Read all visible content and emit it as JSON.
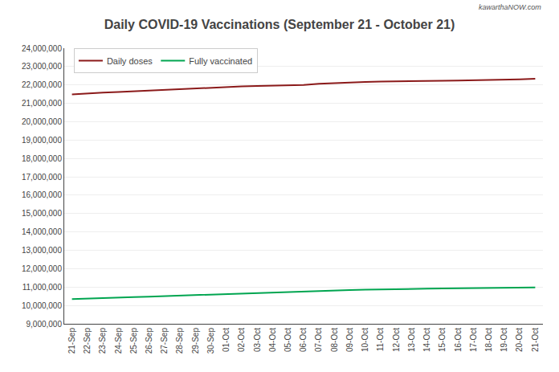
{
  "chart_data": {
    "type": "line",
    "title": "Daily COVID-19 Vaccinations (September 21 - October 21)",
    "annotations": [
      "kawarthaNOW.com"
    ],
    "categories": [
      "21-Sep",
      "22-Sep",
      "23-Sep",
      "24-Sep",
      "25-Sep",
      "26-Sep",
      "27-Sep",
      "28-Sep",
      "29-Sep",
      "30-Sep",
      "01-Oct",
      "02-Oct",
      "03-Oct",
      "04-Oct",
      "05-Oct",
      "06-Oct",
      "07-Oct",
      "08-Oct",
      "09-Oct",
      "10-Oct",
      "11-Oct",
      "12-Oct",
      "13-Oct",
      "14-Oct",
      "15-Oct",
      "16-Oct",
      "17-Oct",
      "18-Oct",
      "19-Oct",
      "20-Oct",
      "21-Oct"
    ],
    "series": [
      {
        "name": "Daily doses",
        "color": "#8B1A1A",
        "values": [
          21480000,
          21540000,
          21580000,
          21620000,
          21660000,
          21700000,
          21740000,
          21780000,
          21820000,
          21860000,
          21890000,
          21920000,
          21940000,
          21960000,
          21980000,
          22000000,
          22060000,
          22100000,
          22130000,
          22160000,
          22180000,
          22200000,
          22210000,
          22220000,
          22230000,
          22240000,
          22250000,
          22270000,
          22290000,
          22310000,
          22340000
        ]
      },
      {
        "name": "Fully vaccinated",
        "color": "#00A550",
        "values": [
          10340000,
          10360000,
          10390000,
          10420000,
          10450000,
          10480000,
          10510000,
          10540000,
          10570000,
          10600000,
          10630000,
          10660000,
          10680000,
          10710000,
          10730000,
          10760000,
          10790000,
          10820000,
          10840000,
          10860000,
          10880000,
          10890000,
          10900000,
          10910000,
          10920000,
          10930000,
          10940000,
          10950000,
          10960000,
          10970000,
          10980000
        ]
      }
    ],
    "ylim": [
      9000000,
      24000000
    ],
    "yticks": [
      {
        "value": 9000000,
        "label": "9,000,000"
      },
      {
        "value": 10000000,
        "label": "10,000,000"
      },
      {
        "value": 11000000,
        "label": "11,000,000"
      },
      {
        "value": 12000000,
        "label": "12,000,000"
      },
      {
        "value": 13000000,
        "label": "13,000,000"
      },
      {
        "value": 14000000,
        "label": "14,000,000"
      },
      {
        "value": 15000000,
        "label": "15,000,000"
      },
      {
        "value": 16000000,
        "label": "16,000,000"
      },
      {
        "value": 17000000,
        "label": "17,000,000"
      },
      {
        "value": 18000000,
        "label": "18,000,000"
      },
      {
        "value": 19000000,
        "label": "19,000,000"
      },
      {
        "value": 20000000,
        "label": "20,000,000"
      },
      {
        "value": 21000000,
        "label": "21,000,000"
      },
      {
        "value": 22000000,
        "label": "22,000,000"
      },
      {
        "value": 23000000,
        "label": "23,000,000"
      },
      {
        "value": 24000000,
        "label": "24,000,000"
      }
    ],
    "grid": true,
    "legend": "upper left"
  }
}
